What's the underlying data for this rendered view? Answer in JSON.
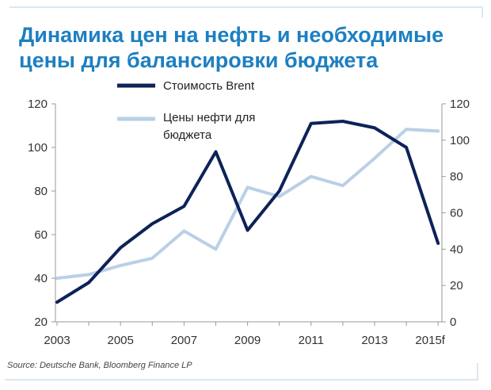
{
  "title": {
    "line1": "Динамика цен на нефть и необходимые",
    "line2": "цены для балансировки бюджета"
  },
  "source": "Source: Deutsche Bank, Bloomberg Finance LP",
  "chart_data": {
    "type": "line",
    "x": [
      "2003",
      "2004",
      "2005",
      "2006",
      "2007",
      "2008",
      "2009",
      "2010",
      "2011",
      "2012",
      "2013",
      "2014",
      "2015f"
    ],
    "x_tick_labels": [
      "2003",
      "2005",
      "2007",
      "2009",
      "2011",
      "2013",
      "2015f"
    ],
    "left_axis": {
      "ylim": [
        20,
        120
      ],
      "ticks": [
        20,
        40,
        60,
        80,
        100,
        120
      ]
    },
    "right_axis": {
      "ylim": [
        0,
        120
      ],
      "ticks": [
        0,
        20,
        40,
        60,
        80,
        100,
        120
      ]
    },
    "series": [
      {
        "name": "Стоимость Brent",
        "axis": "left",
        "color": "#0d2258",
        "values": [
          29,
          38,
          54,
          65,
          73,
          98,
          62,
          80,
          111,
          112,
          109,
          100,
          56
        ]
      },
      {
        "name": "Цены нефти для бюджета",
        "axis": "right",
        "color": "#b9d0e6",
        "values": [
          24,
          26,
          31,
          35,
          50,
          40,
          74,
          69,
          80,
          75,
          90,
          106,
          105
        ]
      }
    ],
    "legend": {
      "placement": "top-left",
      "labels": [
        "Стоимость Brent",
        "Цены нефти для",
        "бюджета"
      ]
    },
    "grid": false
  }
}
